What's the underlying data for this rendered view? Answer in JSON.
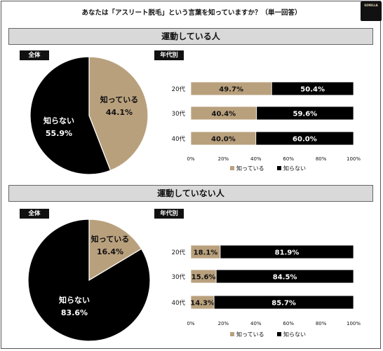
{
  "title": "あなたは「アスリート脱毛」という言葉を知っていますか？（単一回答）",
  "logo": {
    "text": "GORILLA"
  },
  "colors": {
    "known": "#b9a07d",
    "unknown": "#000000",
    "header_bg": "#d9d9d9"
  },
  "chart_data": [
    {
      "section": "運動している人",
      "overall": {
        "type": "pie",
        "label": "全体",
        "slices": [
          {
            "name": "知っている",
            "value": 44.1,
            "value_label": "44.1%"
          },
          {
            "name": "知らない",
            "value": 55.9,
            "value_label": "55.9%"
          }
        ]
      },
      "by_age": {
        "type": "bar",
        "label": "年代別",
        "stacked": true,
        "orientation": "horizontal",
        "categories": [
          "20代",
          "30代",
          "40代"
        ],
        "series": [
          {
            "name": "知っている",
            "values": [
              49.7,
              40.4,
              40.0
            ],
            "value_labels": [
              "49.7%",
              "40.4%",
              "40.0%"
            ]
          },
          {
            "name": "知らない",
            "values": [
              50.4,
              59.6,
              60.0
            ],
            "value_labels": [
              "50.4%",
              "59.6%",
              "60.0%"
            ]
          }
        ],
        "xlim": [
          0,
          100
        ],
        "xticks": [
          "0%",
          "20%",
          "40%",
          "60%",
          "80%",
          "100%"
        ],
        "legend": "bottom",
        "legend_entries": [
          "知っている",
          "知らない"
        ]
      }
    },
    {
      "section": "運動していない人",
      "overall": {
        "type": "pie",
        "label": "全体",
        "slices": [
          {
            "name": "知っている",
            "value": 16.4,
            "value_label": "16.4%"
          },
          {
            "name": "知らない",
            "value": 83.6,
            "value_label": "83.6%"
          }
        ]
      },
      "by_age": {
        "type": "bar",
        "label": "年代別",
        "stacked": true,
        "orientation": "horizontal",
        "categories": [
          "20代",
          "30代",
          "40代"
        ],
        "series": [
          {
            "name": "知っている",
            "values": [
              18.1,
              15.6,
              14.3
            ],
            "value_labels": [
              "18.1%",
              "15.6%",
              "14.3%"
            ]
          },
          {
            "name": "知らない",
            "values": [
              81.9,
              84.5,
              85.7
            ],
            "value_labels": [
              "81.9%",
              "84.5%",
              "85.7%"
            ]
          }
        ],
        "xlim": [
          0,
          100
        ],
        "xticks": [
          "0%",
          "20%",
          "40%",
          "60%",
          "80%",
          "100%"
        ],
        "legend": "bottom",
        "legend_entries": [
          "知っている",
          "知らない"
        ]
      }
    }
  ]
}
